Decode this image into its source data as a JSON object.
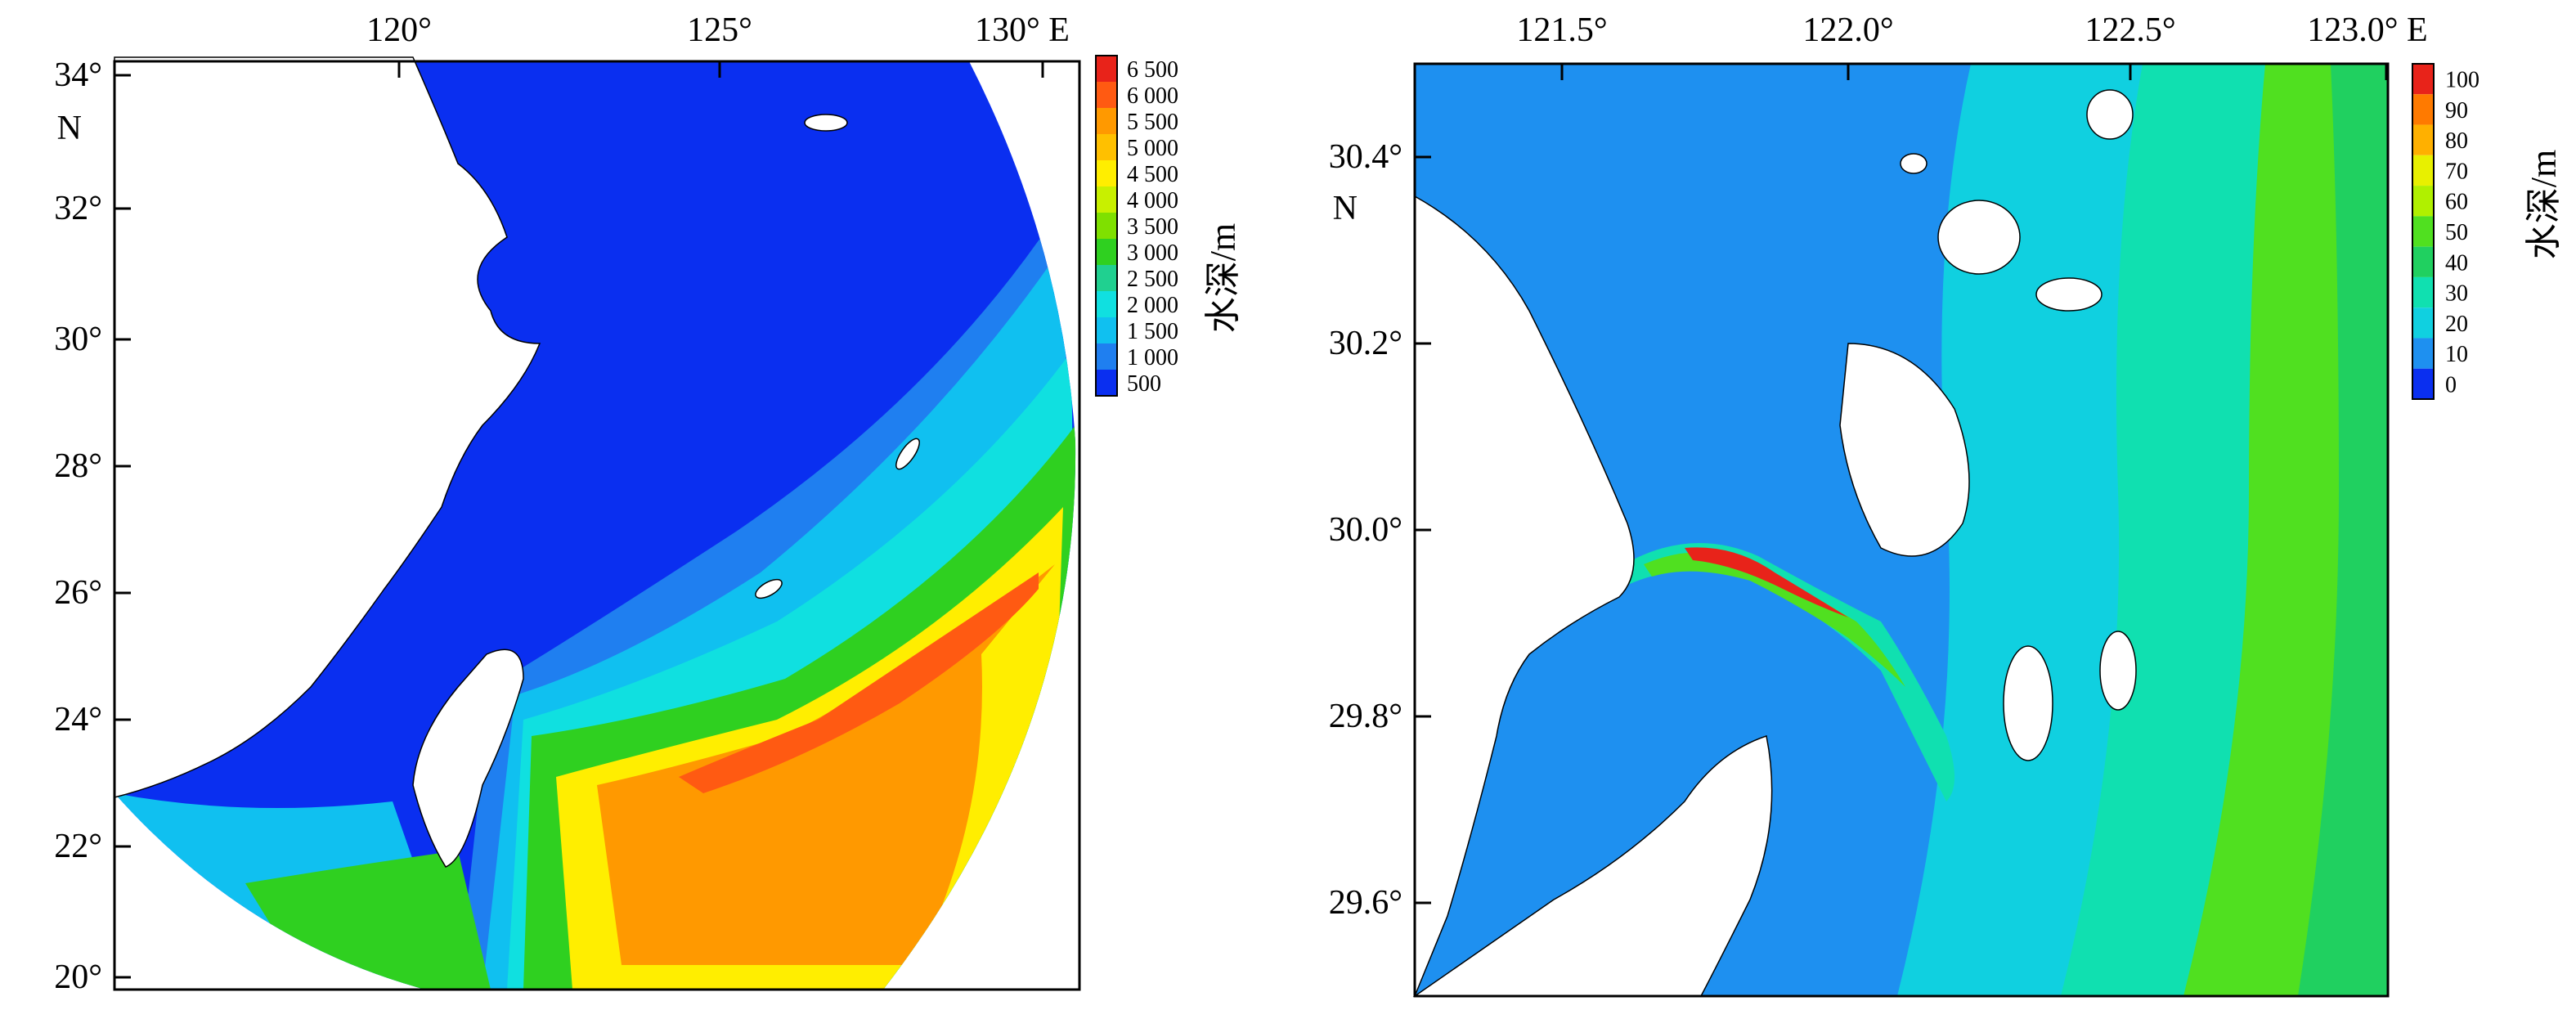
{
  "left_map": {
    "x_ticks": [
      "120°",
      "125°",
      "130° E"
    ],
    "y_ticks": [
      "34°",
      "N",
      "32°",
      "30°",
      "28°",
      "26°",
      "24°",
      "22°",
      "20°"
    ],
    "colorbar": {
      "title": "水深/m",
      "labels": [
        "6 500",
        "6 000",
        "5 500",
        "5 000",
        "4 500",
        "4 000",
        "3 500",
        "3 000",
        "2 500",
        "2 000",
        "1 500",
        "1 000",
        "500"
      ],
      "colors": [
        "#e8231a",
        "#ff5a12",
        "#ff9900",
        "#ffc000",
        "#ffee00",
        "#c8f000",
        "#7fe000",
        "#2fd020",
        "#20d090",
        "#10e0e0",
        "#10c0f0",
        "#1f7ff0",
        "#0a2ff0"
      ]
    }
  },
  "right_map": {
    "x_ticks": [
      "121.5°",
      "122.0°",
      "122.5°",
      "123.0° E"
    ],
    "y_ticks": [
      "30.4°",
      "N",
      "30.2°",
      "30.0°",
      "29.8°",
      "29.6°"
    ],
    "colorbar": {
      "title": "水深/m",
      "labels": [
        "100",
        "90",
        "80",
        "70",
        "60",
        "50",
        "40",
        "30",
        "20",
        "10",
        "0"
      ],
      "colors": [
        "#e8231a",
        "#ff7a00",
        "#ffb000",
        "#e8f000",
        "#b0f000",
        "#50e020",
        "#20d060",
        "#10e0b0",
        "#10d0e0",
        "#1e90f0",
        "#0a2ff0"
      ]
    }
  }
}
